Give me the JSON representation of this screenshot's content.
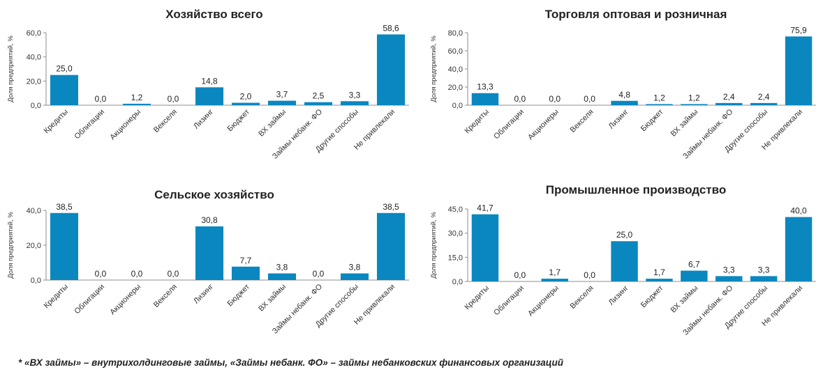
{
  "footnote": "* «ВХ займы» – внутрихолдинговые займы, «Займы небанк. ФО» – займы небанковских финансовых организаций",
  "chart_data": [
    {
      "type": "bar",
      "title": "Хозяйство всего",
      "ylabel": "Доля предприятий, %",
      "categories": [
        "Кредиты",
        "Облигации",
        "Акционеры",
        "Векселя",
        "Лизинг",
        "Бюджет",
        "ВХ займы",
        "Займы небанк. ФО",
        "Другие способы",
        "Не привлекали"
      ],
      "values": [
        25.0,
        0.0,
        1.2,
        0.0,
        14.8,
        2.0,
        3.7,
        2.5,
        3.3,
        58.6
      ],
      "value_labels": [
        "25,0",
        "0,0",
        "1,2",
        "0,0",
        "14,8",
        "2,0",
        "3,7",
        "2,5",
        "3,3",
        "58,6"
      ],
      "yticks": [
        "0,0",
        "20,0",
        "40,0",
        "60,0"
      ],
      "ylim": [
        0,
        60
      ],
      "color": "#0a87bf"
    },
    {
      "type": "bar",
      "title": "Торговля оптовая и розничная",
      "ylabel": "Доля предприятий, %",
      "categories": [
        "Кредиты",
        "Облигации",
        "Акционеры",
        "Векселя",
        "Лизинг",
        "Бюджет",
        "ВХ займы",
        "Займы небанк. ФО",
        "Другие способы",
        "Не привлекали"
      ],
      "values": [
        13.3,
        0.0,
        0.0,
        0.0,
        4.8,
        1.2,
        1.2,
        2.4,
        2.4,
        75.9
      ],
      "value_labels": [
        "13,3",
        "0,0",
        "0,0",
        "0,0",
        "4,8",
        "1,2",
        "1,2",
        "2,4",
        "2,4",
        "75,9"
      ],
      "yticks": [
        "0,0",
        "20,0",
        "40,0",
        "60,0",
        "80,0"
      ],
      "ylim": [
        0,
        80
      ],
      "color": "#0a87bf"
    },
    {
      "type": "bar",
      "title": "Сельское хозяйство",
      "ylabel": "Доля предприятий, %",
      "categories": [
        "Кредиты",
        "Облигации",
        "Акционеры",
        "Векселя",
        "Лизинг",
        "Бюджет",
        "ВХ займы",
        "Займы небанк. ФО",
        "Другие способы",
        "Не привлекали"
      ],
      "values": [
        38.5,
        0.0,
        0.0,
        0.0,
        30.8,
        7.7,
        3.8,
        0.0,
        3.8,
        38.5
      ],
      "value_labels": [
        "38,5",
        "0,0",
        "0,0",
        "0,0",
        "30,8",
        "7,7",
        "3,8",
        "0,0",
        "3,8",
        "38,5"
      ],
      "yticks": [
        "0,0",
        "20,0",
        "40,0"
      ],
      "ylim": [
        0,
        40
      ],
      "color": "#0a87bf"
    },
    {
      "type": "bar",
      "title": "Промышленное производство",
      "ylabel": "Доля предприятий, %",
      "categories": [
        "Кредиты",
        "Облигации",
        "Акционеры",
        "Векселя",
        "Лизинг",
        "Бюджет",
        "ВХ займы",
        "Займы небанк. ФО",
        "Другие способы",
        "Не привлекали"
      ],
      "values": [
        41.7,
        0.0,
        1.7,
        0.0,
        25.0,
        1.7,
        6.7,
        3.3,
        3.3,
        40.0
      ],
      "value_labels": [
        "41,7",
        "0,0",
        "1,7",
        "0,0",
        "25,0",
        "1,7",
        "6,7",
        "3,3",
        "3,3",
        "40,0"
      ],
      "yticks": [
        "0,0",
        "15,0",
        "30,0",
        "45,0"
      ],
      "ylim": [
        0,
        45
      ],
      "color": "#0a87bf"
    }
  ]
}
